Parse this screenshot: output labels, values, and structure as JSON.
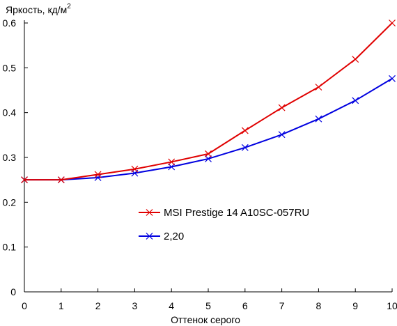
{
  "chart_data": {
    "type": "line",
    "ylabel_main": "Яркость, кд/м",
    "ylabel_sup": "2",
    "xlabel": "Оттенок серого",
    "xlim": [
      0,
      10
    ],
    "ylim": [
      0,
      0.6
    ],
    "x_ticks": [
      0,
      1,
      2,
      3,
      4,
      5,
      6,
      7,
      8,
      9,
      10
    ],
    "y_ticks": [
      0,
      0.1,
      0.2,
      0.3,
      0.4,
      0.5,
      0.6
    ],
    "x_tick_labels": [
      "0",
      "1",
      "2",
      "3",
      "4",
      "5",
      "6",
      "7",
      "8",
      "9",
      "10"
    ],
    "y_tick_labels": [
      "0",
      "0.1",
      "0.2",
      "0.3",
      "0.4",
      "0.5",
      "0.6"
    ],
    "grid": false,
    "legend_position": "lower-center",
    "x": [
      0,
      1,
      2,
      3,
      4,
      5,
      6,
      7,
      8,
      9,
      10
    ],
    "series": [
      {
        "name": "MSI Prestige 14 A10SC-057RU",
        "color": "#e00000",
        "values": [
          0.25,
          0.25,
          0.262,
          0.274,
          0.29,
          0.308,
          0.36,
          0.411,
          0.457,
          0.519,
          0.6
        ]
      },
      {
        "name": "2,20",
        "color": "#0000e0",
        "values": [
          0.25,
          0.25,
          0.255,
          0.265,
          0.279,
          0.297,
          0.322,
          0.351,
          0.386,
          0.427,
          0.476
        ]
      }
    ]
  }
}
